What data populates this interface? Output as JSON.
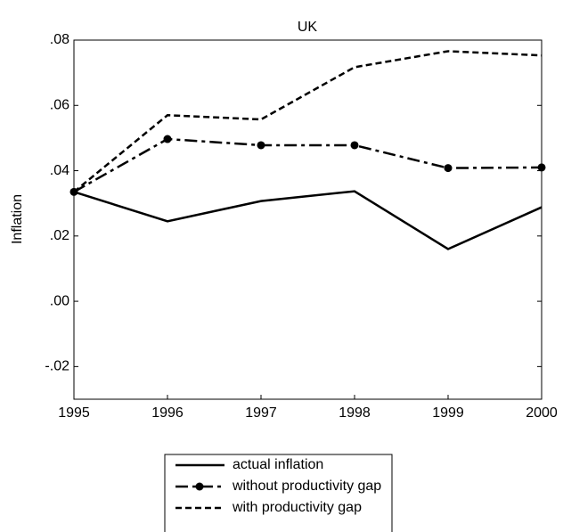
{
  "chart_data": {
    "type": "line",
    "title": "UK",
    "y_label": "Inflation",
    "x": [
      1995,
      1996,
      1997,
      1998,
      1999,
      2000
    ],
    "xlim": [
      1995,
      2000
    ],
    "xticks": [
      1995,
      1996,
      1997,
      1998,
      1999,
      2000
    ],
    "ylim": [
      -0.03,
      0.08
    ],
    "yticks": [
      {
        "value": -0.02,
        "label": "-.02"
      },
      {
        "value": 0,
        "label": ".00"
      },
      {
        "value": 0.02,
        "label": ".02"
      },
      {
        "value": 0.04,
        "label": ".04"
      },
      {
        "value": 0.06,
        "label": ".06"
      },
      {
        "value": 0.08,
        "label": ".08"
      }
    ],
    "grid": false,
    "legend": "bottom",
    "series": [
      {
        "name": "actual inflation",
        "color": "#000000",
        "style": "solid",
        "marker": "none",
        "values": [
          0.0335,
          0.0245,
          0.0307,
          0.0337,
          0.016,
          0.0288
        ]
      },
      {
        "name": "without productivity gap",
        "color": "#000000",
        "style": "dashdot",
        "marker": "circle",
        "values": [
          0.0335,
          0.0497,
          0.0478,
          0.0478,
          0.0408,
          0.041
        ]
      },
      {
        "name": "with productivity gap",
        "color": "#000000",
        "style": "dashed",
        "marker": "none",
        "values": [
          0.0335,
          0.057,
          0.0557,
          0.0717,
          0.0766,
          0.0753
        ]
      }
    ]
  }
}
